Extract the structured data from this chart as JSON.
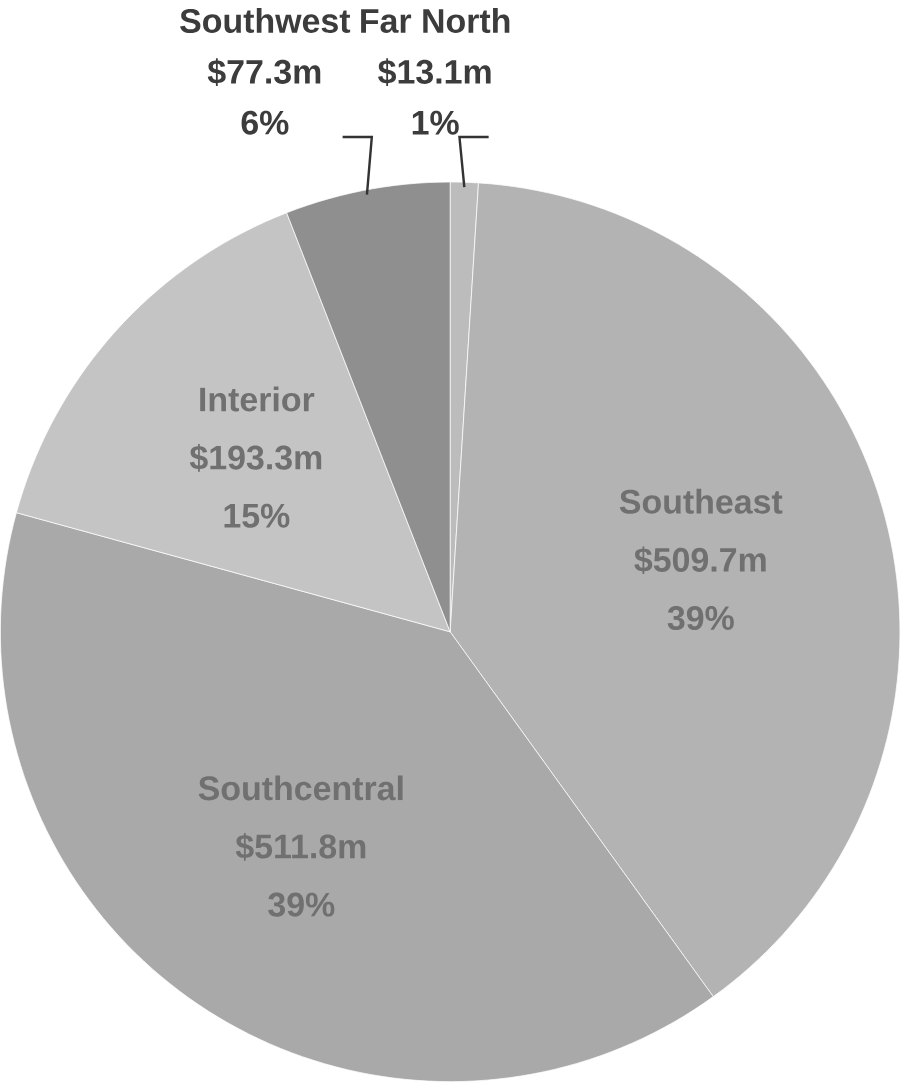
{
  "chart_data": {
    "type": "pie",
    "categories": [
      "Far North",
      "Southeast",
      "Southcentral",
      "Interior",
      "Southwest"
    ],
    "values": [
      13.1,
      509.7,
      511.8,
      193.3,
      77.3
    ],
    "value_labels": [
      "$13.1m",
      "$509.7m",
      "$511.8m",
      "$193.3m",
      "$77.3m"
    ],
    "colors": [
      "#bcbcbc",
      "#b3b3b3",
      "#a9a9a9",
      "#c4c4c4",
      "#8f8f8f"
    ],
    "annotations": [
      {
        "text": "1%",
        "x": "Far North"
      },
      {
        "text": "39%",
        "x": "Southeast"
      },
      {
        "text": "39%",
        "x": "Southcentral"
      },
      {
        "text": "15%",
        "x": "Interior"
      },
      {
        "text": "6%",
        "x": "Southwest"
      }
    ]
  }
}
